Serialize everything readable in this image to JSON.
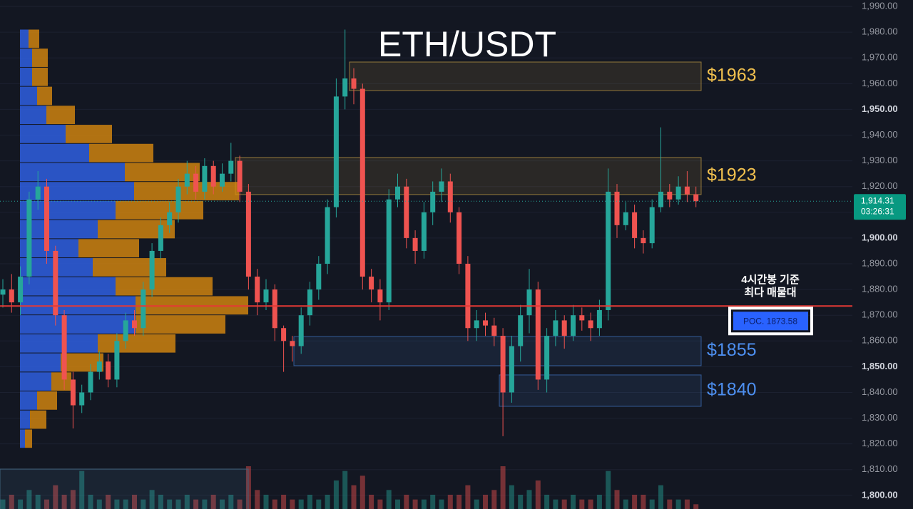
{
  "chart_data": {
    "type": "candlestick",
    "title": "ETH/USDT",
    "up_color": "#26a69a",
    "down_color": "#ef5350",
    "ylim": [
      1794.7,
      1992.5
    ],
    "yticks": [
      {
        "value": 1800,
        "label": "1,800.00"
      },
      {
        "value": 1810,
        "label": "1,810.00"
      },
      {
        "value": 1820,
        "label": "1,820.00"
      },
      {
        "value": 1830,
        "label": "1,830.00"
      },
      {
        "value": 1840,
        "label": "1,840.00"
      },
      {
        "value": 1850,
        "label": "1,850.00"
      },
      {
        "value": 1860,
        "label": "1,860.00"
      },
      {
        "value": 1870,
        "label": "1,870.00"
      },
      {
        "value": 1880,
        "label": "1,880.00"
      },
      {
        "value": 1890,
        "label": "1,890.00"
      },
      {
        "value": 1900,
        "label": "1,900.00"
      },
      {
        "value": 1910,
        "label": "1,910.00"
      },
      {
        "value": 1920,
        "label": "1,920.00"
      },
      {
        "value": 1930,
        "label": "1,930.00"
      },
      {
        "value": 1940,
        "label": "1,940.00"
      },
      {
        "value": 1950,
        "label": "1,950.00"
      },
      {
        "value": 1960,
        "label": "1,960.00"
      },
      {
        "value": 1970,
        "label": "1,970.00"
      },
      {
        "value": 1980,
        "label": "1,980.00"
      },
      {
        "value": 1990,
        "label": "1,990.00"
      }
    ],
    "grid": true,
    "open": [
      1878,
      1880,
      1875,
      1885,
      1915,
      1920,
      1895,
      1870,
      1845,
      1835,
      1840,
      1848,
      1852,
      1845,
      1860,
      1868,
      1865,
      1880,
      1895,
      1905,
      1910,
      1920,
      1925,
      1918,
      1928,
      1920,
      1925,
      1930,
      1918,
      1885,
      1875,
      1880,
      1865,
      1860,
      1858,
      1870,
      1880,
      1890,
      1912,
      1955,
      1962,
      1958,
      1885,
      1880,
      1875,
      1915,
      1920,
      1900,
      1895,
      1910,
      1918,
      1922,
      1910,
      1890,
      1865,
      1868,
      1866,
      1862,
      1840,
      1858,
      1870,
      1880,
      1845,
      1862,
      1868,
      1862,
      1870,
      1868,
      1865,
      1872,
      1918,
      1905,
      1910,
      1900,
      1898,
      1912,
      1918,
      1915,
      1920,
      1917
    ],
    "high": [
      1884,
      1886,
      1889,
      1918,
      1926,
      1923,
      1897,
      1872,
      1848,
      1843,
      1851,
      1856,
      1855,
      1863,
      1871,
      1872,
      1883,
      1898,
      1908,
      1914,
      1923,
      1930,
      1928,
      1931,
      1930,
      1929,
      1937,
      1932,
      1921,
      1888,
      1884,
      1882,
      1866,
      1862,
      1873,
      1883,
      1893,
      1915,
      1962,
      1981,
      1966,
      1960,
      1888,
      1884,
      1919,
      1925,
      1923,
      1903,
      1914,
      1922,
      1927,
      1925,
      1912,
      1893,
      1872,
      1871,
      1869,
      1865,
      1862,
      1874,
      1888,
      1883,
      1865,
      1872,
      1870,
      1874,
      1873,
      1871,
      1876,
      1927,
      1921,
      1914,
      1913,
      1903,
      1915,
      1943,
      1921,
      1924,
      1926,
      1920
    ],
    "low": [
      1873,
      1871,
      1870,
      1882,
      1911,
      1890,
      1866,
      1841,
      1826,
      1832,
      1837,
      1845,
      1842,
      1842,
      1857,
      1862,
      1862,
      1877,
      1892,
      1902,
      1906,
      1917,
      1915,
      1915,
      1917,
      1918,
      1922,
      1914,
      1880,
      1870,
      1872,
      1860,
      1848,
      1852,
      1855,
      1866,
      1876,
      1886,
      1908,
      1950,
      1952,
      1880,
      1875,
      1868,
      1872,
      1912,
      1896,
      1890,
      1892,
      1905,
      1914,
      1906,
      1886,
      1860,
      1860,
      1862,
      1858,
      1823,
      1836,
      1852,
      1863,
      1841,
      1840,
      1858,
      1857,
      1860,
      1864,
      1860,
      1862,
      1868,
      1900,
      1903,
      1896,
      1894,
      1896,
      1910,
      1912,
      1913,
      1914,
      1912
    ],
    "close": [
      1880,
      1875,
      1885,
      1915,
      1920,
      1895,
      1870,
      1845,
      1835,
      1840,
      1848,
      1852,
      1845,
      1860,
      1868,
      1865,
      1880,
      1895,
      1905,
      1910,
      1920,
      1925,
      1918,
      1928,
      1920,
      1925,
      1930,
      1918,
      1885,
      1875,
      1880,
      1865,
      1860,
      1858,
      1870,
      1880,
      1890,
      1912,
      1955,
      1962,
      1958,
      1885,
      1880,
      1875,
      1915,
      1920,
      1900,
      1895,
      1910,
      1918,
      1922,
      1910,
      1890,
      1865,
      1868,
      1866,
      1862,
      1840,
      1858,
      1870,
      1880,
      1845,
      1862,
      1868,
      1862,
      1870,
      1868,
      1865,
      1872,
      1918,
      1905,
      1910,
      1900,
      1898,
      1912,
      1918,
      1915,
      1920,
      1917,
      1914.31
    ],
    "volume": [
      2,
      3,
      2,
      4,
      3,
      2,
      5,
      3,
      4,
      8,
      3,
      2,
      3,
      2,
      2,
      3,
      2,
      4,
      3,
      2,
      2,
      3,
      2,
      2,
      3,
      2,
      3,
      2,
      9,
      4,
      3,
      2,
      3,
      2,
      2,
      3,
      2,
      3,
      6,
      8,
      5,
      7,
      3,
      2,
      4,
      2,
      3,
      2,
      2,
      3,
      2,
      3,
      3,
      5,
      2,
      3,
      4,
      9,
      5,
      3,
      4,
      6,
      3,
      2,
      2,
      3,
      2,
      2,
      3,
      8,
      4,
      2,
      3,
      3,
      2,
      5,
      2,
      2,
      2,
      1
    ],
    "profile": {
      "bins": [
        1981,
        1973.6,
        1966.2,
        1958.8,
        1951.4,
        1944,
        1936.6,
        1929.2,
        1921.8,
        1914.4,
        1907,
        1899.6,
        1892.2,
        1884.8,
        1877.4,
        1870,
        1862.6,
        1855.2,
        1847.8,
        1840.4,
        1833,
        1825.6,
        1818.2
      ],
      "buy": [
        12,
        17,
        17,
        24,
        37,
        64,
        97,
        147,
        160,
        134,
        109,
        82,
        102,
        134,
        162,
        162,
        109,
        57,
        44,
        24,
        14,
        7
      ],
      "sell": [
        15,
        22,
        22,
        21,
        40,
        65,
        90,
        105,
        147,
        123,
        108,
        85,
        103,
        136,
        158,
        126,
        109,
        60,
        28,
        28,
        23,
        10
      ],
      "buy_color": "#2f5fe0",
      "sell_color": "#d9890f"
    },
    "zones": [
      {
        "label": "$1963",
        "low": 1957.3,
        "high": 1968.4,
        "color": "#f2c14e"
      },
      {
        "label": "$1923",
        "low": 1916.9,
        "high": 1931.3,
        "color": "#f2c14e"
      },
      {
        "label": "$1855",
        "low": 1850.4,
        "high": 1861.7,
        "color": "#4d8ff0"
      },
      {
        "label": "$1840",
        "low": 1834.6,
        "high": 1846.8,
        "color": "#4d8ff0"
      }
    ],
    "poc": {
      "value": 1873.58,
      "label": "POC. 1873.58",
      "color": "#e53935"
    },
    "annotation": [
      "4시간봉 기준",
      "최다 매물대"
    ],
    "last_price": {
      "value": 1914.31,
      "label": "1,914.31",
      "countdown": "03:26:31"
    }
  }
}
